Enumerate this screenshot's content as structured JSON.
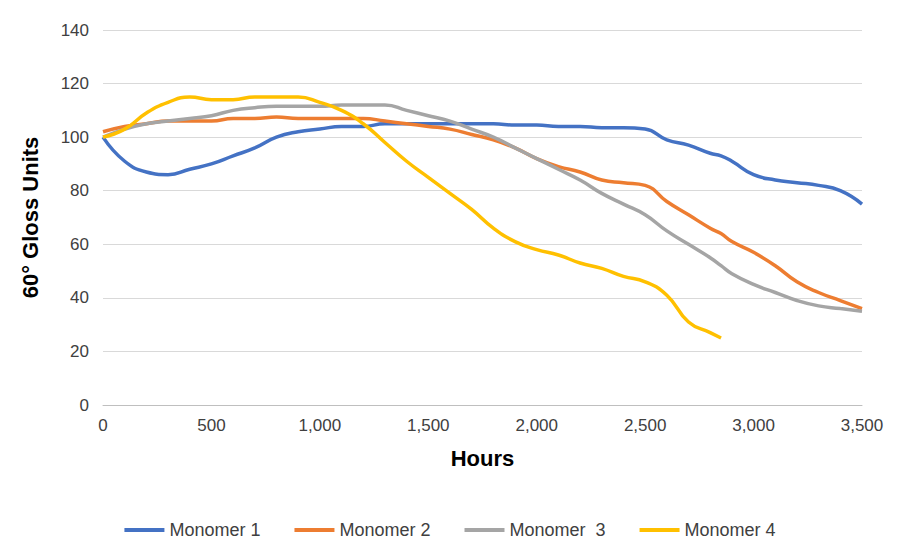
{
  "chart_data": {
    "type": "line",
    "x_label": "Hours",
    "y_label": "60° Gloss Units",
    "x": [
      0,
      100,
      200,
      300,
      400,
      500,
      600,
      700,
      800,
      900,
      1000,
      1100,
      1200,
      1300,
      1400,
      1500,
      1600,
      1700,
      1800,
      1900,
      2000,
      2100,
      2200,
      2300,
      2400,
      2500,
      2600,
      2700,
      2800,
      2850,
      2900,
      3000,
      3100,
      3200,
      3300,
      3400,
      3500
    ],
    "series": [
      {
        "name": "Monomer 1",
        "color": "#4472c4",
        "values": [
          100,
          91,
          87,
          86,
          88,
          90,
          93,
          96,
          100,
          102,
          103,
          104,
          104,
          105,
          105,
          105,
          105,
          105,
          105,
          104.5,
          104.5,
          104,
          104,
          103.5,
          103.5,
          103,
          99,
          97,
          94,
          93,
          91,
          86,
          84,
          83,
          82,
          80,
          75
        ]
      },
      {
        "name": "Monomer 2",
        "color": "#ed7d31",
        "values": [
          102,
          104,
          105,
          106,
          106,
          106,
          107,
          107,
          107.5,
          107,
          107,
          107,
          107,
          106,
          105,
          104,
          103,
          101,
          99,
          96,
          92,
          89,
          87,
          84,
          83,
          82,
          76,
          71,
          66,
          64,
          61,
          57,
          52,
          46,
          42,
          39,
          36
        ]
      },
      {
        "name": "Monomer  3",
        "color": "#a5a5a5",
        "values": [
          100,
          103,
          105,
          106,
          107,
          108,
          110,
          111,
          111.5,
          111.5,
          111.5,
          112,
          112,
          112,
          110,
          108,
          106,
          103,
          100,
          96,
          92,
          88,
          84,
          79,
          75,
          71,
          65,
          60,
          55,
          52,
          49,
          45,
          42,
          39,
          37,
          36,
          35
        ]
      },
      {
        "name": "Monomer 4",
        "color": "#ffc000",
        "values": [
          100,
          103,
          109,
          113,
          115,
          114,
          114,
          115,
          115,
          115,
          113,
          110,
          105,
          98,
          91,
          85,
          79,
          73,
          66,
          61,
          58,
          56,
          53,
          51,
          48,
          46,
          41,
          31,
          27,
          25,
          null,
          null,
          null,
          null,
          null,
          null,
          null
        ]
      }
    ],
    "xlim": [
      0,
      3500
    ],
    "xticks": [
      0,
      500,
      {
        "value": 1000,
        "label": "1,000"
      },
      {
        "value": 1500,
        "label": "1,500"
      },
      {
        "value": 2000,
        "label": "2,000"
      },
      {
        "value": 2500,
        "label": "2,500"
      },
      {
        "value": 3000,
        "label": "3,000"
      },
      {
        "value": 3500,
        "label": "3,500"
      }
    ],
    "ylim": [
      0,
      140
    ],
    "yticks": [
      0,
      20,
      40,
      60,
      80,
      100,
      120,
      140
    ],
    "grid": true,
    "legend": "bottom",
    "marker": "none",
    "line_style": "solid"
  }
}
